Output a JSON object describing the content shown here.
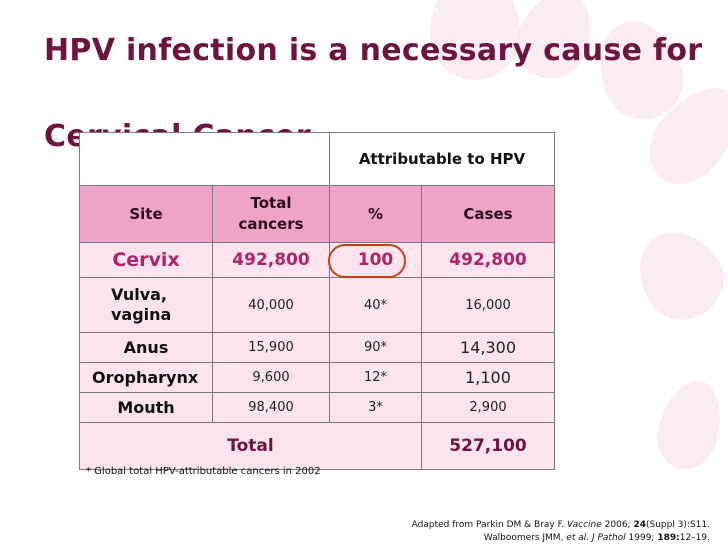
{
  "title": "HPV infection is a necessary cause for Cervical Cancer",
  "table": {
    "header_attributable": "Attributable to HPV",
    "columns": {
      "site": "Site",
      "total": "Total cancers",
      "percent": "%",
      "cases": "Cases"
    },
    "rows": [
      {
        "site": "Cervix",
        "total": "492,800",
        "percent": "100",
        "cases": "492,800"
      },
      {
        "site": "Vulva, vagina",
        "total": "40,000",
        "percent": "40*",
        "cases": "16,000"
      },
      {
        "site": "Anus",
        "total": "15,900",
        "percent": "90*",
        "cases": "14,300"
      },
      {
        "site": "Oropharynx",
        "total": "9,600",
        "percent": "12*",
        "cases": "1,100"
      },
      {
        "site": "Mouth",
        "total": "98,400",
        "percent": "3*",
        "cases": "2,900"
      }
    ],
    "total_label": "Total",
    "total_cases": "527,100"
  },
  "footnote": "* Global total HPV-attributable cancers in 2002",
  "citation": {
    "line1_a": "Adapted from Parkin DM & Bray F. ",
    "line1_journal": "Vaccine",
    "line1_b": " 2006; ",
    "line1_vol": "24",
    "line1_c": "(Suppl 3):S11.",
    "line2_a": "Walboomers JMM, ",
    "line2_journal": "et al. J Pathol",
    "line2_b": " 1999; ",
    "line2_vol": "189:",
    "line2_c": "12–19."
  },
  "colors": {
    "title": "#6b1540",
    "header": "#f0a3c9",
    "row": "#fce4ef",
    "highlight": "#b2226a",
    "circle": "#c2421a"
  }
}
